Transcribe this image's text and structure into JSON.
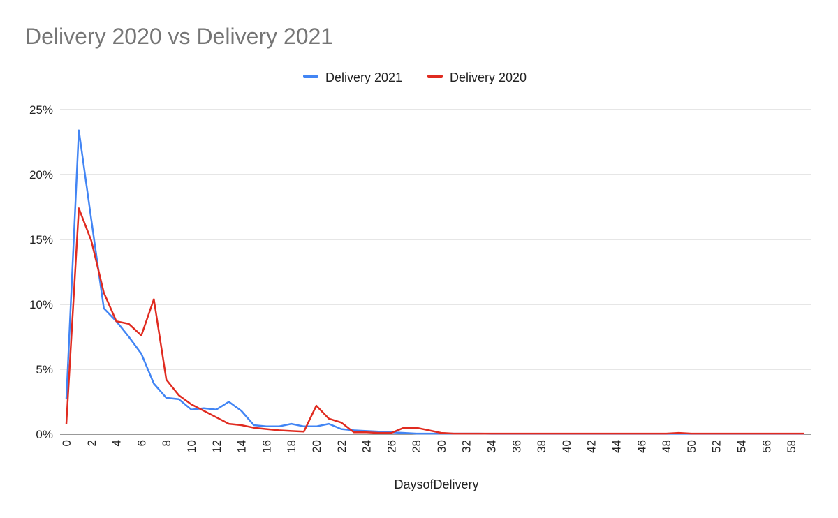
{
  "chart_data": {
    "type": "line",
    "title": "Delivery 2020 vs Delivery 2021",
    "xlabel": "DaysofDelivery",
    "ylabel": "",
    "ylim": [
      0,
      25
    ],
    "yticks": [
      "0%",
      "5%",
      "10%",
      "15%",
      "20%",
      "25%"
    ],
    "xlim": [
      0,
      59
    ],
    "xticks": [
      "0",
      "2",
      "4",
      "6",
      "8",
      "10",
      "12",
      "14",
      "16",
      "18",
      "20",
      "22",
      "24",
      "26",
      "28",
      "30",
      "32",
      "34",
      "36",
      "38",
      "40",
      "42",
      "44",
      "46",
      "48",
      "50",
      "52",
      "54",
      "56",
      "58"
    ],
    "grid": true,
    "legend_position": "top",
    "x": [
      0,
      1,
      2,
      3,
      4,
      5,
      6,
      7,
      8,
      9,
      10,
      11,
      12,
      13,
      14,
      15,
      16,
      17,
      18,
      19,
      20,
      21,
      22,
      23,
      24,
      25,
      26,
      27,
      28,
      29,
      30,
      31,
      32,
      33,
      34,
      35,
      36,
      37,
      38,
      39,
      40,
      41,
      42,
      43,
      44,
      45,
      46,
      47,
      48,
      49,
      50,
      51,
      52,
      53,
      54,
      55,
      56,
      57,
      58,
      59
    ],
    "series": [
      {
        "name": "Delivery 2021",
        "color": "#4285f4",
        "values": [
          2.7,
          23.4,
          16.5,
          9.7,
          8.7,
          7.5,
          6.2,
          3.9,
          2.8,
          2.7,
          1.9,
          2.0,
          1.9,
          2.5,
          1.8,
          0.7,
          0.6,
          0.6,
          0.8,
          0.6,
          0.6,
          0.8,
          0.4,
          0.3,
          0.25,
          0.2,
          0.15,
          0.1,
          0.05,
          0.05,
          0.05,
          0.05,
          0.05,
          0.05,
          0.03,
          0.03,
          0.03,
          0.03,
          0.03,
          0.03,
          0.03,
          0.03,
          0.03,
          0.03,
          0.03,
          0.03,
          0.03,
          0.03,
          0.03,
          0.03,
          0.03,
          0.03,
          0.03,
          0.03,
          0.03,
          0.03,
          0.03,
          0.03,
          0.03,
          0.03
        ]
      },
      {
        "name": "Delivery 2020",
        "color": "#e02b20",
        "values": [
          0.8,
          17.4,
          14.9,
          10.9,
          8.7,
          8.5,
          7.6,
          10.4,
          4.2,
          3.0,
          2.3,
          1.8,
          1.3,
          0.8,
          0.7,
          0.5,
          0.4,
          0.3,
          0.25,
          0.2,
          2.2,
          1.2,
          0.9,
          0.15,
          0.15,
          0.1,
          0.1,
          0.5,
          0.5,
          0.3,
          0.1,
          0.05,
          0.05,
          0.05,
          0.05,
          0.05,
          0.05,
          0.05,
          0.05,
          0.05,
          0.05,
          0.05,
          0.05,
          0.05,
          0.05,
          0.05,
          0.05,
          0.05,
          0.05,
          0.1,
          0.05,
          0.05,
          0.05,
          0.05,
          0.05,
          0.05,
          0.05,
          0.05,
          0.05,
          0.05
        ]
      }
    ]
  }
}
